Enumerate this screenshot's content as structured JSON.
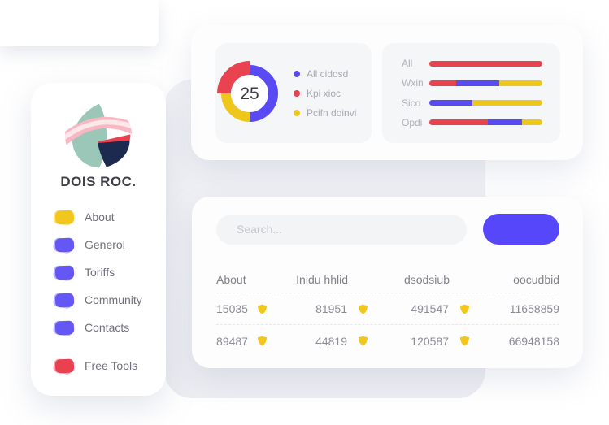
{
  "brand": {
    "title": "DOIS ROC."
  },
  "colors": {
    "accent_indigo": "#5747fb",
    "chart_blue": "#5a4af4",
    "chart_red": "#e9434f",
    "chart_yellow": "#eec71d",
    "shield_yellow": "#f2c71d",
    "backdrop_gray": "#eff0f4"
  },
  "sidebar": {
    "items": [
      {
        "label": "About",
        "color": "#f2c71d"
      },
      {
        "label": "Generol",
        "color": "#6557f3"
      },
      {
        "label": "Toriffs",
        "color": "#6557f3"
      },
      {
        "label": "Community",
        "color": "#6557f3"
      },
      {
        "label": "Contacts",
        "color": "#6557f3"
      },
      {
        "label": "Free Tools",
        "color": "#ea4150"
      }
    ]
  },
  "top_card": {
    "donut": {
      "center_value": "25",
      "segments": [
        {
          "color": "#5a4af4",
          "pct": 50,
          "emphasis": false
        },
        {
          "color": "#eec71d",
          "pct": 25,
          "emphasis": false
        },
        {
          "color": "#e9434f",
          "pct": 25,
          "emphasis": true
        }
      ],
      "legend": [
        {
          "label": "All cidosd",
          "color": "#5a4af4"
        },
        {
          "label": "Kpi xioc",
          "color": "#e9434f"
        },
        {
          "label": "Pcifn doinvi",
          "color": "#eec71d"
        }
      ]
    },
    "bars": {
      "rows": [
        {
          "label": "All",
          "segments": [
            {
              "color": "#e9434f",
              "pct": 100
            }
          ]
        },
        {
          "label": "Wxin",
          "segments": [
            {
              "color": "#e9434f",
              "pct": 24
            },
            {
              "color": "#5a4af4",
              "pct": 38
            },
            {
              "color": "#eec71d",
              "pct": 38
            }
          ]
        },
        {
          "label": "Sico",
          "segments": [
            {
              "color": "#5a4af4",
              "pct": 38
            },
            {
              "color": "#eec71d",
              "pct": 62
            }
          ]
        },
        {
          "label": "Opdi",
          "segments": [
            {
              "color": "#e9434f",
              "pct": 52
            },
            {
              "color": "#5a4af4",
              "pct": 30
            },
            {
              "color": "#eec71d",
              "pct": 18
            }
          ]
        }
      ]
    }
  },
  "bottom_card": {
    "search": {
      "placeholder": "Search..."
    },
    "table": {
      "headers": [
        "About",
        "Inidu hhlid",
        "dsodsiub",
        "oocudbid"
      ],
      "rows": [
        [
          {
            "value": "15035",
            "icon": true
          },
          {
            "value": "81951",
            "icon": true
          },
          {
            "value": "491547",
            "icon": true
          },
          {
            "value": "11658859",
            "icon": false
          }
        ],
        [
          {
            "value": "89487",
            "icon": true
          },
          {
            "value": "44819",
            "icon": true
          },
          {
            "value": "120587",
            "icon": true
          },
          {
            "value": "66948158",
            "icon": false
          }
        ]
      ]
    }
  },
  "chart_data": [
    {
      "type": "pie",
      "donut": true,
      "center_label": "25",
      "labels": [
        "All cidosd",
        "Pcifn doinvi",
        "Kpi xioc"
      ],
      "values": [
        50,
        25,
        25
      ],
      "colors": [
        "#5a4af4",
        "#eec71d",
        "#e9434f"
      ],
      "legend_position": "right"
    },
    {
      "type": "bar",
      "orientation": "horizontal",
      "stacked": true,
      "categories": [
        "All",
        "Wxin",
        "Sico",
        "Opdi"
      ],
      "series": [
        {
          "name": "red",
          "color": "#e9434f",
          "values": [
            100,
            24,
            0,
            52
          ]
        },
        {
          "name": "blue",
          "color": "#5a4af4",
          "values": [
            0,
            38,
            38,
            30
          ]
        },
        {
          "name": "yellow",
          "color": "#eec71d",
          "values": [
            0,
            38,
            62,
            18
          ]
        }
      ],
      "xlim": [
        0,
        100
      ]
    }
  ]
}
